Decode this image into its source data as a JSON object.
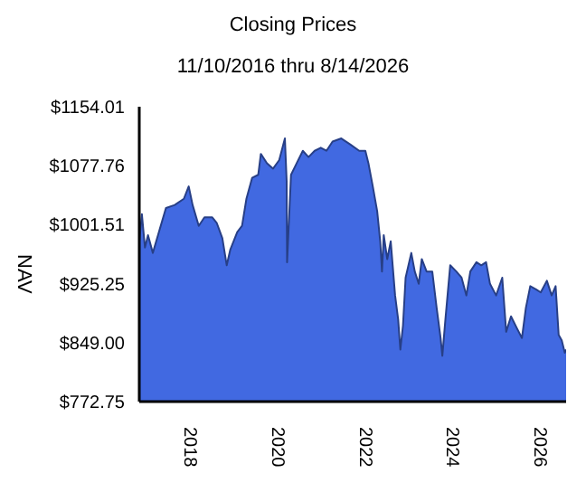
{
  "chart_data": {
    "type": "area",
    "title": "Closing Prices",
    "subtitle": "11/10/2016 thru 8/14/2026",
    "ylabel": "NAV",
    "x": [
      2016.86,
      2016.92,
      2016.99,
      2017.06,
      2017.17,
      2017.33,
      2017.47,
      2017.67,
      2017.88,
      2017.99,
      2018.08,
      2018.22,
      2018.35,
      2018.53,
      2018.63,
      2018.76,
      2018.86,
      2018.94,
      2019.1,
      2019.21,
      2019.31,
      2019.44,
      2019.58,
      2019.64,
      2019.78,
      2019.92,
      2020.06,
      2020.19,
      2020.23,
      2020.24,
      2020.33,
      2020.46,
      2020.6,
      2020.73,
      2020.87,
      2021.01,
      2021.14,
      2021.28,
      2021.48,
      2021.69,
      2021.89,
      2022.03,
      2022.1,
      2022.2,
      2022.3,
      2022.37,
      2022.41,
      2022.45,
      2022.53,
      2022.61,
      2022.71,
      2022.78,
      2022.83,
      2022.89,
      2022.95,
      2023.08,
      2023.16,
      2023.25,
      2023.32,
      2023.43,
      2023.56,
      2023.66,
      2023.75,
      2023.79,
      2023.86,
      2023.97,
      2024.11,
      2024.23,
      2024.34,
      2024.43,
      2024.57,
      2024.68,
      2024.79,
      2024.88,
      2025.02,
      2025.16,
      2025.25,
      2025.36,
      2025.5,
      2025.61,
      2025.7,
      2025.8,
      2025.93,
      2026.04,
      2026.18,
      2026.29,
      2026.38,
      2026.45,
      2026.52,
      2026.59,
      2026.62
    ],
    "series": [
      {
        "color": "#4169e1",
        "values": [
          980,
          1015,
          972,
          988,
          965,
          996,
          1023,
          1027,
          1035,
          1051,
          1027,
          1000,
          1011,
          1011,
          1004,
          984,
          949,
          969,
          992,
          1000,
          1035,
          1062,
          1066,
          1093,
          1081,
          1074,
          1085,
          1113,
          1058,
          953,
          1066,
          1081,
          1097,
          1089,
          1097,
          1101,
          1097,
          1109,
          1113,
          1105,
          1097,
          1097,
          1081,
          1051,
          1019,
          980,
          941,
          988,
          957,
          980,
          910,
          879,
          840,
          871,
          933,
          965,
          941,
          925,
          957,
          941,
          941,
          894,
          855,
          832,
          879,
          949,
          941,
          933,
          910,
          941,
          953,
          949,
          953,
          925,
          910,
          933,
          863,
          883,
          867,
          855,
          894,
          922,
          918,
          914,
          929,
          910,
          922,
          859,
          852,
          836,
          840
        ]
      }
    ],
    "xlim": [
      2016.86,
      2026.62
    ],
    "xticks": [
      2018,
      2020,
      2022,
      2024,
      2026
    ],
    "ylim": [
      772.75,
      1154.01
    ],
    "yticks": [
      {
        "value": 772.75,
        "label": "$772.75"
      },
      {
        "value": 849.0,
        "label": "$849.00"
      },
      {
        "value": 925.25,
        "label": "$925.25"
      },
      {
        "value": 1001.51,
        "label": "$1001.51"
      },
      {
        "value": 1077.76,
        "label": "$1077.76"
      },
      {
        "value": 1154.01,
        "label": "$1154.01"
      }
    ],
    "grid": false,
    "legend": false
  }
}
